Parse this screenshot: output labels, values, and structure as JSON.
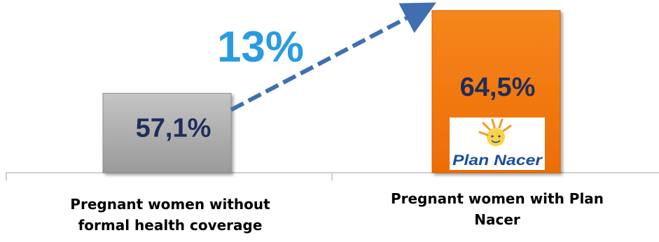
{
  "chart_data": {
    "type": "bar",
    "categories": [
      "Pregnant women without formal health coverage",
      "Pregnant women with Plan Nacer"
    ],
    "values": [
      57.1,
      64.5
    ],
    "data_labels": [
      "57,1%",
      "64,5%"
    ],
    "bar_colors": [
      "#a6a6a6",
      "#f47c0f"
    ],
    "value_label_color": "#1f2d5c",
    "annotation": {
      "text": "13%",
      "color": "#2a9be0",
      "arrow_color": "#3f6fb0",
      "arrow_style": "dashed"
    },
    "logo": {
      "name": "plan-nacer-logo",
      "text": "Plan Nacer",
      "text_color": "#1a4fa0",
      "figure_color": "#f39a1e"
    },
    "axis_color": "#bfbfbf",
    "grid": false,
    "legend": "none"
  }
}
